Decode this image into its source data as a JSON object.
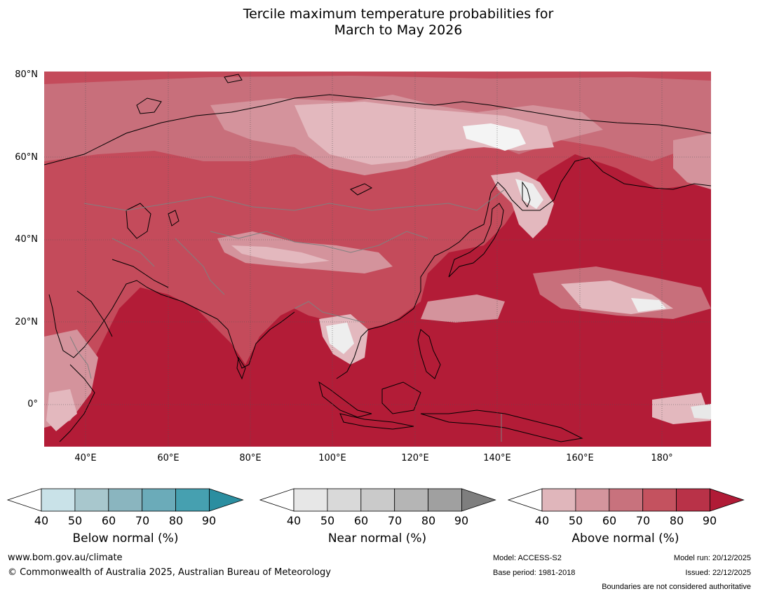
{
  "title": {
    "line1": "Tercile maximum temperature probabilities for",
    "line2": "March to May 2026"
  },
  "map": {
    "lat_labels": [
      "80°N",
      "60°N",
      "40°N",
      "20°N",
      "0°"
    ],
    "lon_labels": [
      "40°E",
      "60°E",
      "80°E",
      "100°E",
      "120°E",
      "140°E",
      "160°E",
      "180°"
    ],
    "colors": {
      "ocean_dominant": "#b31c37",
      "land_above_70": "#c44b5b",
      "land_above_60": "#c86f7b",
      "above_50": "#d4939c",
      "above_40": "#e3b8be",
      "near_normal": "#e8e8e8",
      "coastline": "#000000",
      "borders": "#808080"
    }
  },
  "colorbars": [
    {
      "name": "Below normal (%)",
      "ticks": [
        "40",
        "50",
        "60",
        "70",
        "80",
        "90"
      ],
      "colors": [
        "#ffffff",
        "#c9e2e8",
        "#a8c7cd",
        "#8ab5bf",
        "#6babb9",
        "#46a0b0",
        "#2b8ea0"
      ]
    },
    {
      "name": "Near normal (%)",
      "ticks": [
        "40",
        "50",
        "60",
        "70",
        "80",
        "90"
      ],
      "colors": [
        "#ffffff",
        "#e7e7e7",
        "#d9d9d9",
        "#cacaca",
        "#b5b5b5",
        "#a0a0a0",
        "#7e7e7e"
      ]
    },
    {
      "name": "Above normal (%)",
      "ticks": [
        "40",
        "50",
        "60",
        "70",
        "80",
        "90"
      ],
      "colors": [
        "#ffffff",
        "#e0b6bb",
        "#d4959d",
        "#c8727d",
        "#c4525f",
        "#b93248",
        "#b01b36"
      ]
    }
  ],
  "footer": {
    "website": "www.bom.gov.au/climate",
    "copyright": "© Commonwealth of Australia 2025, Australian Bureau of Meteorology",
    "model": "Model: ACCESS-S2",
    "base_period": "Base period: 1981-2018",
    "model_run": "Model run: 20/12/2025",
    "issued": "Issued: 22/12/2025",
    "disclaimer": "Boundaries are not considered authoritative"
  }
}
